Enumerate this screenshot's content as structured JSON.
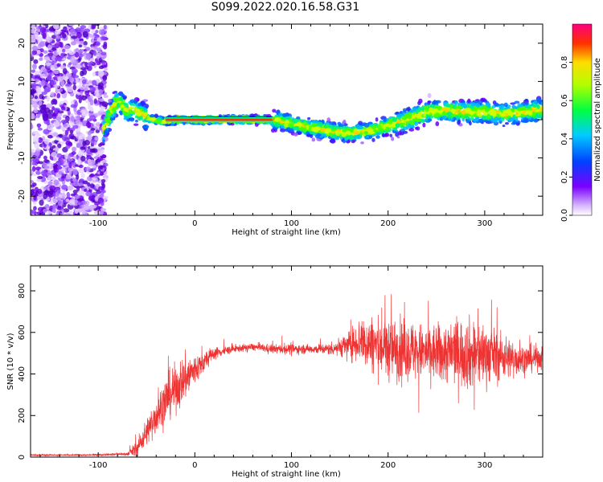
{
  "figure": {
    "title": "S099.2022.020.16.58.G31"
  },
  "chart_data": [
    {
      "type": "heatmap",
      "xlabel": "Height of straight line (km)",
      "ylabel": "Frequency (Hz)",
      "xlim": [
        -170,
        360
      ],
      "ylim": [
        -25,
        25
      ],
      "xticks": [
        -100,
        0,
        100,
        200,
        300
      ],
      "yticks": [
        -20,
        -10,
        0,
        10,
        20
      ],
      "colorbar": {
        "label": "Normalized spectral amplitude",
        "range": [
          0,
          1
        ],
        "ticks": [
          "0.0",
          "0.2",
          "0.4",
          "0.6",
          "0.8"
        ],
        "tick_values": [
          0,
          0.2,
          0.4,
          0.6,
          0.8
        ],
        "colormap": "rainbow (white-violet-blue-cyan-green-yellow-red-magenta)"
      },
      "band_center": {
        "x": [
          -95,
          -90,
          -85,
          -80,
          -75,
          -70,
          -65,
          -60,
          -55,
          -50,
          -40,
          -30,
          -20,
          0,
          50,
          80,
          100,
          120,
          140,
          160,
          180,
          200,
          220,
          240,
          260,
          280,
          300,
          320,
          340,
          360
        ],
        "y": [
          -3,
          0,
          3,
          5,
          4,
          2,
          3,
          2,
          2,
          0.5,
          0,
          -0.5,
          0,
          0,
          0,
          0,
          -1,
          -2,
          -3,
          -3.5,
          -3,
          -1.5,
          0,
          2,
          2.5,
          2,
          2,
          1.5,
          2,
          2.5
        ]
      }
    },
    {
      "type": "line",
      "xlabel": "Height of straight line (km)",
      "ylabel": "SNR (10 * v/v)",
      "xlim": [
        -170,
        360
      ],
      "ylim": [
        0,
        920
      ],
      "xticks": [
        -100,
        0,
        100,
        200,
        300
      ],
      "yticks": [
        0,
        200,
        400,
        600,
        800
      ],
      "color": "#ee3333",
      "envelope": {
        "x": [
          -170,
          -110,
          -70,
          -60,
          -50,
          -40,
          -30,
          -20,
          -10,
          0,
          10,
          20,
          40,
          60,
          80,
          100,
          120,
          140,
          160,
          170,
          180,
          200,
          220,
          240,
          260,
          270,
          280,
          290,
          300,
          320,
          340,
          360
        ],
        "y": [
          10,
          10,
          15,
          40,
          120,
          200,
          280,
          330,
          380,
          420,
          460,
          500,
          520,
          530,
          520,
          520,
          520,
          520,
          540,
          560,
          550,
          520,
          520,
          500,
          500,
          510,
          500,
          490,
          500,
          480,
          470,
          480
        ],
        "amp": [
          5,
          5,
          10,
          60,
          90,
          130,
          160,
          160,
          160,
          110,
          70,
          40,
          25,
          25,
          30,
          35,
          30,
          40,
          90,
          150,
          180,
          210,
          200,
          190,
          210,
          220,
          240,
          240,
          210,
          150,
          100,
          80
        ]
      }
    }
  ]
}
